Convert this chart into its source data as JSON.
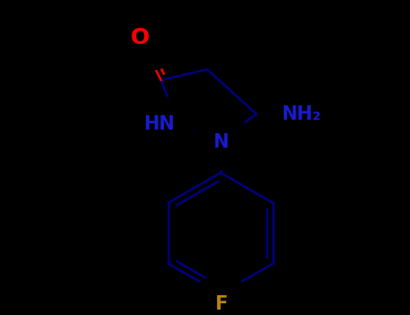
{
  "background_color": "#000000",
  "bond_color": "#000080",
  "bond_width": 1.8,
  "atom_colors": {
    "O": "#ff0000",
    "N": "#1a1acc",
    "F": "#b8860b",
    "C": "#000000"
  },
  "label_fontsize": 16,
  "label_fontweight": "bold"
}
